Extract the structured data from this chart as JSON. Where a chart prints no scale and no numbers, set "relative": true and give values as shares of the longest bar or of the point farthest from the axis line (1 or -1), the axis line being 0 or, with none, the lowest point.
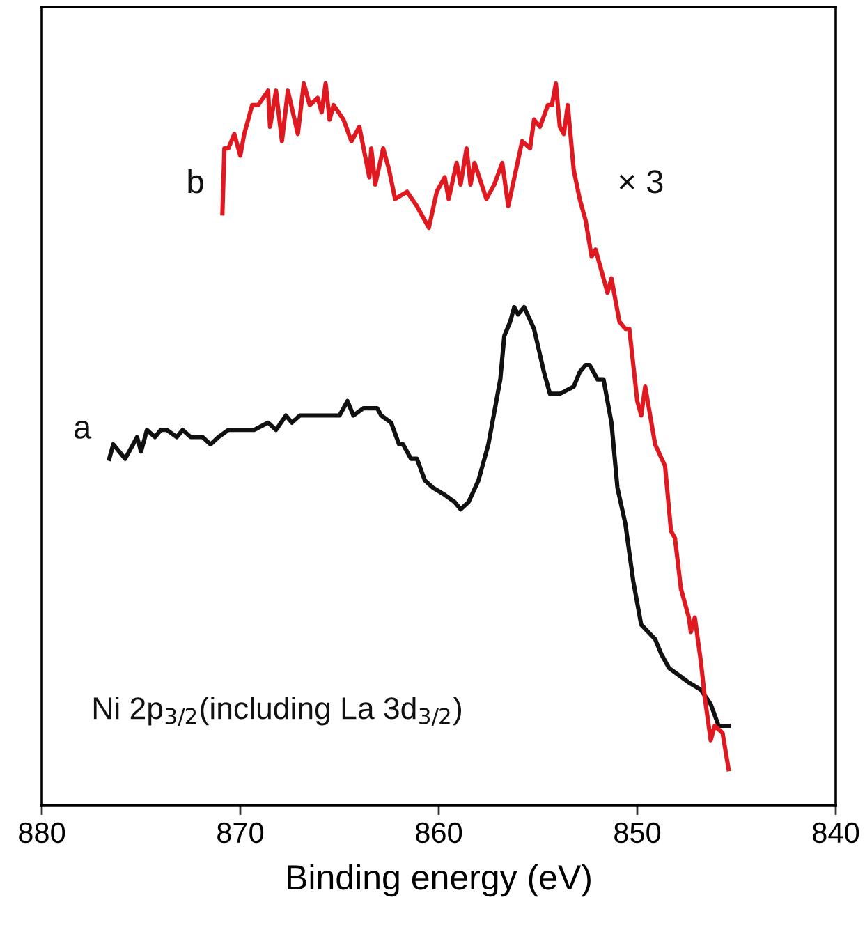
{
  "chart_data": {
    "type": "line",
    "xlabel": "Binding energy (eV)",
    "relative": true,
    "tick_labels": "x",
    "xlim": [
      880,
      840
    ],
    "xticks": [
      880,
      870,
      860,
      850,
      840
    ],
    "annotations": [
      "× 3",
      "Ni 2p$_{3/2}$(including La 3d$_{3/2}$)"
    ],
    "series": [
      {
        "name": "a",
        "color": "#111111",
        "x": [
          876.6,
          876.4,
          876.1,
          875.8,
          875.4,
          875.2,
          875.0,
          874.7,
          874.3,
          874.0,
          873.7,
          873.2,
          872.9,
          872.5,
          871.9,
          871.5,
          871.1,
          870.6,
          869.9,
          869.3,
          868.6,
          868.2,
          867.7,
          867.4,
          867.0,
          866.3,
          865.7,
          865.0,
          864.6,
          864.3,
          863.8,
          863.1,
          862.9,
          862.4,
          862.0,
          861.8,
          861.4,
          861.1,
          860.7,
          860.3,
          859.7,
          859.2,
          858.9,
          858.5,
          858.0,
          857.5,
          856.9,
          856.7,
          856.4,
          856.2,
          856.0,
          855.7,
          855.2,
          854.7,
          854.4,
          853.9,
          853.2,
          852.9,
          852.6,
          852.4,
          852.0,
          851.7,
          851.3,
          851.0,
          850.6,
          850.2,
          849.8,
          849.1,
          848.8,
          848.4,
          847.9,
          847.4,
          846.8,
          846.3,
          845.9,
          845.4
        ],
        "values": [
          0.48,
          0.5,
          0.49,
          0.48,
          0.5,
          0.51,
          0.49,
          0.52,
          0.51,
          0.52,
          0.52,
          0.51,
          0.52,
          0.51,
          0.51,
          0.5,
          0.51,
          0.52,
          0.52,
          0.52,
          0.53,
          0.52,
          0.54,
          0.53,
          0.54,
          0.54,
          0.54,
          0.54,
          0.56,
          0.54,
          0.55,
          0.55,
          0.54,
          0.53,
          0.5,
          0.5,
          0.48,
          0.48,
          0.45,
          0.44,
          0.43,
          0.42,
          0.41,
          0.42,
          0.45,
          0.5,
          0.59,
          0.65,
          0.67,
          0.69,
          0.68,
          0.69,
          0.66,
          0.6,
          0.57,
          0.57,
          0.58,
          0.6,
          0.61,
          0.61,
          0.59,
          0.59,
          0.53,
          0.44,
          0.39,
          0.31,
          0.25,
          0.23,
          0.21,
          0.19,
          0.18,
          0.17,
          0.16,
          0.14,
          0.11,
          0.11
        ]
      },
      {
        "name": "b",
        "color": "#e0181f",
        "x": [
          870.9,
          870.8,
          870.6,
          870.3,
          870.0,
          869.8,
          869.4,
          869.1,
          868.6,
          868.5,
          868.2,
          867.9,
          867.6,
          867.1,
          866.8,
          866.5,
          866.1,
          865.9,
          865.7,
          865.5,
          865.3,
          864.8,
          864.4,
          864.0,
          863.5,
          863.4,
          863.2,
          862.8,
          862.5,
          862.2,
          861.6,
          861.1,
          860.5,
          860.1,
          859.7,
          859.5,
          859.1,
          858.9,
          858.6,
          858.4,
          858.2,
          857.6,
          857.2,
          856.8,
          856.5,
          855.8,
          855.4,
          855.2,
          854.9,
          854.5,
          854.3,
          854.1,
          853.9,
          853.7,
          853.5,
          853.2,
          852.9,
          852.6,
          852.3,
          852.1,
          851.5,
          851.3,
          850.9,
          850.6,
          850.4,
          850.0,
          849.8,
          849.6,
          849.1,
          848.6,
          848.3,
          848.1,
          847.8,
          847.4,
          847.3,
          847.1,
          846.8,
          846.6,
          846.3,
          846.1,
          845.7,
          845.4
        ],
        "values": [
          0.82,
          0.91,
          0.91,
          0.93,
          0.9,
          0.93,
          0.97,
          0.97,
          0.99,
          0.94,
          0.99,
          0.92,
          0.99,
          0.93,
          1.0,
          0.97,
          0.98,
          0.96,
          1.0,
          0.95,
          0.97,
          0.95,
          0.92,
          0.94,
          0.87,
          0.91,
          0.86,
          0.91,
          0.88,
          0.84,
          0.85,
          0.83,
          0.8,
          0.85,
          0.87,
          0.84,
          0.89,
          0.86,
          0.91,
          0.86,
          0.89,
          0.84,
          0.86,
          0.89,
          0.83,
          0.92,
          0.91,
          0.95,
          0.94,
          0.97,
          0.97,
          1.0,
          0.94,
          0.93,
          0.97,
          0.88,
          0.84,
          0.81,
          0.76,
          0.77,
          0.71,
          0.73,
          0.67,
          0.66,
          0.66,
          0.56,
          0.54,
          0.58,
          0.5,
          0.47,
          0.38,
          0.37,
          0.3,
          0.26,
          0.24,
          0.26,
          0.2,
          0.15,
          0.09,
          0.11,
          0.1,
          0.05
        ]
      }
    ]
  }
}
